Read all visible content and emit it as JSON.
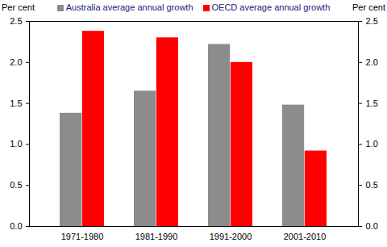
{
  "chart_data": {
    "type": "bar",
    "categories": [
      "1971-1980",
      "1981-1990",
      "1991-2000",
      "2001-2010"
    ],
    "series": [
      {
        "name": "Australia average annual growth",
        "color": "#8c8c8c",
        "values": [
          1.38,
          1.65,
          2.22,
          1.48
        ]
      },
      {
        "name": "OECD average annual growth",
        "color": "#ff0000",
        "values": [
          2.38,
          2.3,
          2.0,
          0.92
        ]
      }
    ],
    "ylabel": "Per cent",
    "ylim": [
      0,
      2.5
    ],
    "yticks": [
      {
        "value": 0,
        "label": "0.0"
      },
      {
        "value": 0.5,
        "label": "0.5"
      },
      {
        "value": 1,
        "label": "1.0"
      },
      {
        "value": 1.5,
        "label": "1.5"
      },
      {
        "value": 2,
        "label": "2.0"
      },
      {
        "value": 2.5,
        "label": "2.5"
      }
    ],
    "legend": "top",
    "grid": false
  }
}
